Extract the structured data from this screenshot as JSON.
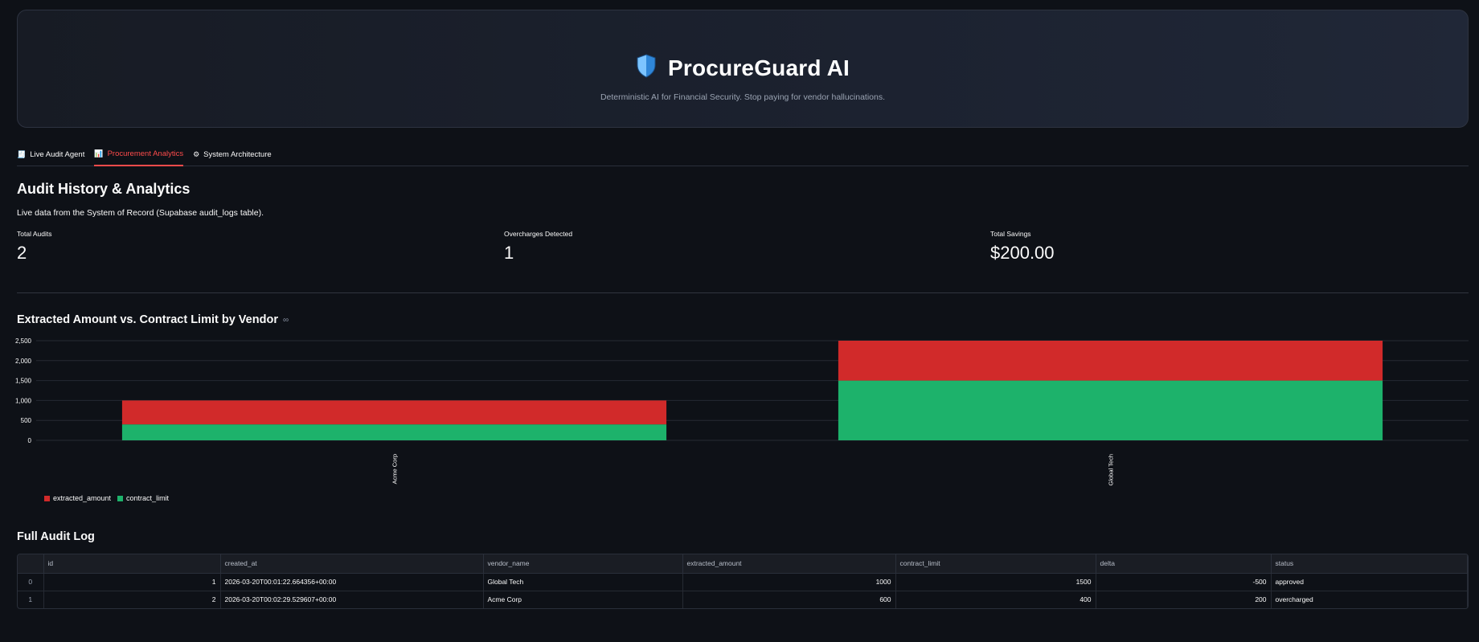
{
  "header": {
    "title": "ProcureGuard AI",
    "subtitle": "Deterministic AI for Financial Security. Stop paying for vendor hallucinations.",
    "logo_icon": "shield-icon"
  },
  "tabs": [
    {
      "label": "Live Audit Agent",
      "icon": "receipt-icon",
      "active": false
    },
    {
      "label": "Procurement Analytics",
      "icon": "bar-chart-icon",
      "active": true
    },
    {
      "label": "System Architecture",
      "icon": "gear-icon",
      "active": false
    }
  ],
  "page": {
    "heading": "Audit History & Analytics",
    "caption": "Live data from the System of Record (Supabase audit_logs table)."
  },
  "metrics": [
    {
      "label": "Total Audits",
      "value": "2"
    },
    {
      "label": "Overcharges Detected",
      "value": "1"
    },
    {
      "label": "Total Savings",
      "value": "$200.00"
    }
  ],
  "chart_section": {
    "heading": "Extracted Amount vs. Contract Limit by Vendor",
    "link_icon": "link-icon"
  },
  "chart_data": {
    "type": "bar",
    "stacked": true,
    "categories": [
      "Acme Corp",
      "Global Tech"
    ],
    "series": [
      {
        "name": "contract_limit",
        "values": [
          400,
          1500
        ],
        "color": "#1db26b"
      },
      {
        "name": "extracted_amount",
        "values": [
          600,
          1000
        ],
        "color": "#d12a2a"
      }
    ],
    "y_ticks": [
      "0",
      "500",
      "1,000",
      "1,500",
      "2,000",
      "2,500"
    ],
    "ylim": [
      0,
      2500
    ],
    "grid": true,
    "legend_position": "bottom-left"
  },
  "log_section": {
    "heading": "Full Audit Log"
  },
  "table": {
    "columns": [
      "",
      "id",
      "created_at",
      "vendor_name",
      "extracted_amount",
      "contract_limit",
      "delta",
      "status"
    ],
    "rows": [
      [
        "0",
        "1",
        "2026-03-20T00:01:22.664356+00:00",
        "Global Tech",
        "1000",
        "1500",
        "-500",
        "approved"
      ],
      [
        "1",
        "2",
        "2026-03-20T00:02:29.529607+00:00",
        "Acme Corp",
        "600",
        "400",
        "200",
        "overcharged"
      ]
    ]
  },
  "colors": {
    "background": "#0e1117",
    "accent": "#ff4b4b",
    "extracted_amount": "#d12a2a",
    "contract_limit": "#1db26b"
  }
}
